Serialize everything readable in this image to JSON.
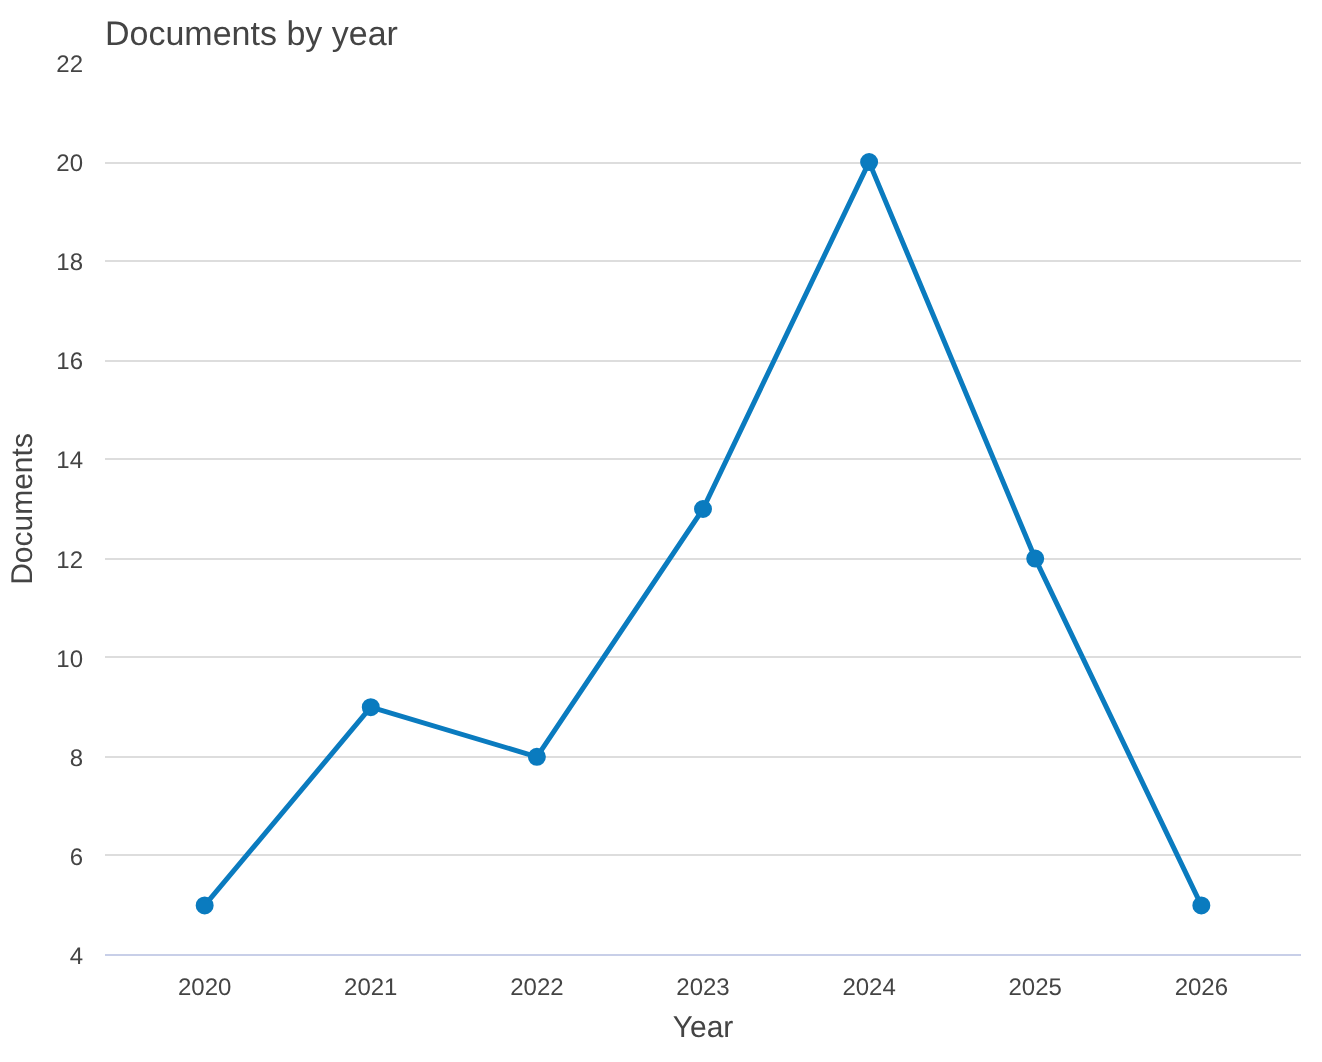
{
  "chart_data": {
    "type": "line",
    "title": "Documents by year",
    "xlabel": "Year",
    "ylabel": "Documents",
    "categories": [
      "2020",
      "2021",
      "2022",
      "2023",
      "2024",
      "2025",
      "2026"
    ],
    "series": [
      {
        "color": "#0a7bbf",
        "values": [
          5,
          9,
          8,
          13,
          20,
          12,
          5
        ]
      }
    ],
    "ylim": [
      4,
      22
    ],
    "yticks": [
      4,
      6,
      8,
      10,
      12,
      14,
      16,
      18,
      20,
      22
    ],
    "grid": "y",
    "marker": "circle",
    "line_style": "solid"
  }
}
